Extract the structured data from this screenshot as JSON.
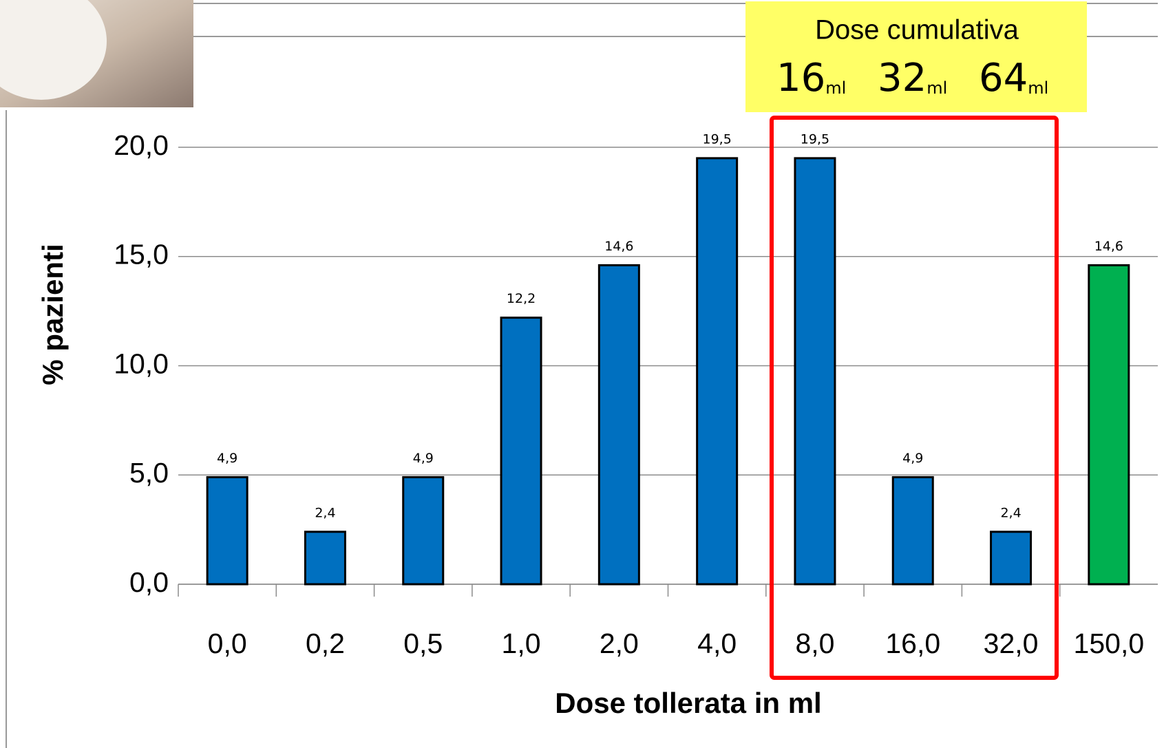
{
  "chart_data": {
    "type": "bar",
    "categories": [
      "0,0",
      "0,2",
      "0,5",
      "1,0",
      "2,0",
      "4,0",
      "8,0",
      "16,0",
      "32,0",
      "150,0"
    ],
    "values": [
      4.9,
      2.4,
      4.9,
      12.2,
      14.6,
      19.5,
      19.5,
      4.9,
      2.4,
      14.6
    ],
    "value_labels": [
      "4,9",
      "2,4",
      "4,9",
      "12,2",
      "14,6",
      "19,5",
      "19,5",
      "4,9",
      "2,4",
      "14,6"
    ],
    "colors": [
      "#0070c0",
      "#0070c0",
      "#0070c0",
      "#0070c0",
      "#0070c0",
      "#0070c0",
      "#0070c0",
      "#0070c0",
      "#0070c0",
      "#00b050"
    ],
    "ylim": [
      0,
      20
    ],
    "yticks": [
      {
        "value": 0,
        "label": "0,0"
      },
      {
        "value": 5,
        "label": "5,0"
      },
      {
        "value": 10,
        "label": "10,0"
      },
      {
        "value": 15,
        "label": "15,0"
      },
      {
        "value": 20,
        "label": "20,0"
      }
    ],
    "grid": true,
    "x_label": "Dose tollerata in ml",
    "y_label": "% pazienti",
    "annotation": {
      "title": "Dose cumulativa",
      "doses": [
        {
          "value": "16",
          "unit": "ml"
        },
        {
          "value": "32",
          "unit": "ml"
        },
        {
          "value": "64",
          "unit": "ml"
        }
      ]
    }
  }
}
